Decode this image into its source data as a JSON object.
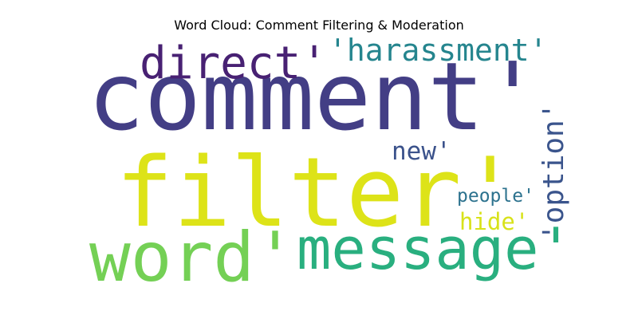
{
  "chart_data": {
    "type": "wordcloud",
    "title": "Word Cloud: Comment Filtering & Moderation",
    "colormap": "viridis",
    "background": "#ffffff",
    "words": [
      {
        "text": "comment'",
        "weight": 1.0,
        "color": "#433e85"
      },
      {
        "text": "filter'",
        "weight": 0.98,
        "color": "#dde318"
      },
      {
        "text": "word'",
        "weight": 0.7,
        "color": "#74d055"
      },
      {
        "text": "message'",
        "weight": 0.62,
        "color": "#29af7f"
      },
      {
        "text": "direct'",
        "weight": 0.46,
        "color": "#482173"
      },
      {
        "text": "'harassment'",
        "weight": 0.33,
        "color": "#25858e"
      },
      {
        "text": "'option'",
        "weight": 0.3,
        "color": "#3a548c"
      },
      {
        "text": "new'",
        "weight": 0.27,
        "color": "#3b528b"
      },
      {
        "text": "hide'",
        "weight": 0.25,
        "color": "#d8e219"
      },
      {
        "text": "people'",
        "weight": 0.21,
        "color": "#2c728e"
      }
    ]
  }
}
